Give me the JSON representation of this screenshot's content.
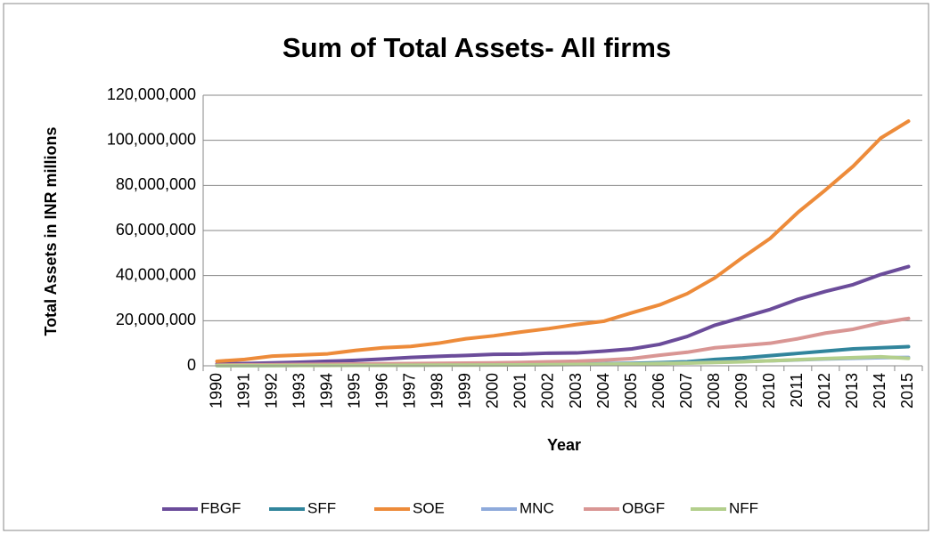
{
  "chart_data": {
    "type": "line",
    "title": "Sum of Total Assets- All firms",
    "x_label": "Year",
    "y_label": "Total Assets in INR millions",
    "categories": [
      "1990",
      "1991",
      "1992",
      "1993",
      "1994",
      "1995",
      "1996",
      "1997",
      "1998",
      "1999",
      "2000",
      "2001",
      "2002",
      "2003",
      "2004",
      "2005",
      "2006",
      "2007",
      "2008",
      "2009",
      "2010",
      "2011",
      "2012",
      "2013",
      "2014",
      "2015"
    ],
    "ylim": [
      0,
      120000000
    ],
    "yticks": [
      0,
      {
        "value": 20000000,
        "label": "20,000,000"
      },
      {
        "value": 40000000,
        "label": "40,000,000"
      },
      {
        "value": 60000000,
        "label": "60,000,000"
      },
      {
        "value": 80000000,
        "label": "80,000,000"
      },
      {
        "value": 100000000,
        "label": "100,000,000"
      },
      {
        "value": 120000000,
        "label": "120,000,000"
      }
    ],
    "grid": true,
    "legend": "bottom",
    "series": [
      {
        "name": "FBGF",
        "color": "#6b4c9a",
        "values": [
          800000,
          1000000,
          1300000,
          1600000,
          2000000,
          2400000,
          3000000,
          3700000,
          4200000,
          4600000,
          5100000,
          5200000,
          5600000,
          5700000,
          6500000,
          7500000,
          9500000,
          13000000,
          18000000,
          21500000,
          25000000,
          29500000,
          33000000,
          36000000,
          40500000,
          44000000
        ]
      },
      {
        "name": "SFF",
        "color": "#31859c",
        "values": [
          100000,
          100000,
          150000,
          200000,
          200000,
          250000,
          300000,
          350000,
          400000,
          400000,
          500000,
          600000,
          700000,
          800000,
          900000,
          1100000,
          1400000,
          1800000,
          2800000,
          3500000,
          4500000,
          5500000,
          6500000,
          7500000,
          8000000,
          8500000
        ]
      },
      {
        "name": "SOE",
        "color": "#ed8b3a",
        "values": [
          2000000,
          2800000,
          4300000,
          4800000,
          5300000,
          6800000,
          8000000,
          8600000,
          10000000,
          12000000,
          13300000,
          15000000,
          16500000,
          18300000,
          19800000,
          23500000,
          27000000,
          32000000,
          39000000,
          48000000,
          56500000,
          68000000,
          78000000,
          88500000,
          101000000,
          108500000
        ]
      },
      {
        "name": "MNC",
        "color": "#8eaadb",
        "values": [
          100000,
          100000,
          150000,
          200000,
          200000,
          250000,
          300000,
          300000,
          350000,
          400000,
          450000,
          500000,
          600000,
          700000,
          800000,
          900000,
          1100000,
          1300000,
          1600000,
          1900000,
          2200000,
          2600000,
          3000000,
          3300000,
          3600000,
          3700000
        ]
      },
      {
        "name": "OBGF",
        "color": "#d99694",
        "values": [
          300000,
          400000,
          500000,
          600000,
          700000,
          800000,
          900000,
          1000000,
          1100000,
          1200000,
          1300000,
          1500000,
          1800000,
          2000000,
          2500000,
          3200000,
          4700000,
          6000000,
          8000000,
          9000000,
          10000000,
          12000000,
          14500000,
          16200000,
          19000000,
          21000000
        ]
      },
      {
        "name": "NFF",
        "color": "#b3cf8c",
        "values": [
          100000,
          100000,
          100000,
          150000,
          150000,
          200000,
          200000,
          250000,
          300000,
          300000,
          350000,
          400000,
          500000,
          600000,
          700000,
          800000,
          1000000,
          1200000,
          1500000,
          1800000,
          2200000,
          2700000,
          3200000,
          3600000,
          4000000,
          3300000
        ]
      }
    ]
  }
}
